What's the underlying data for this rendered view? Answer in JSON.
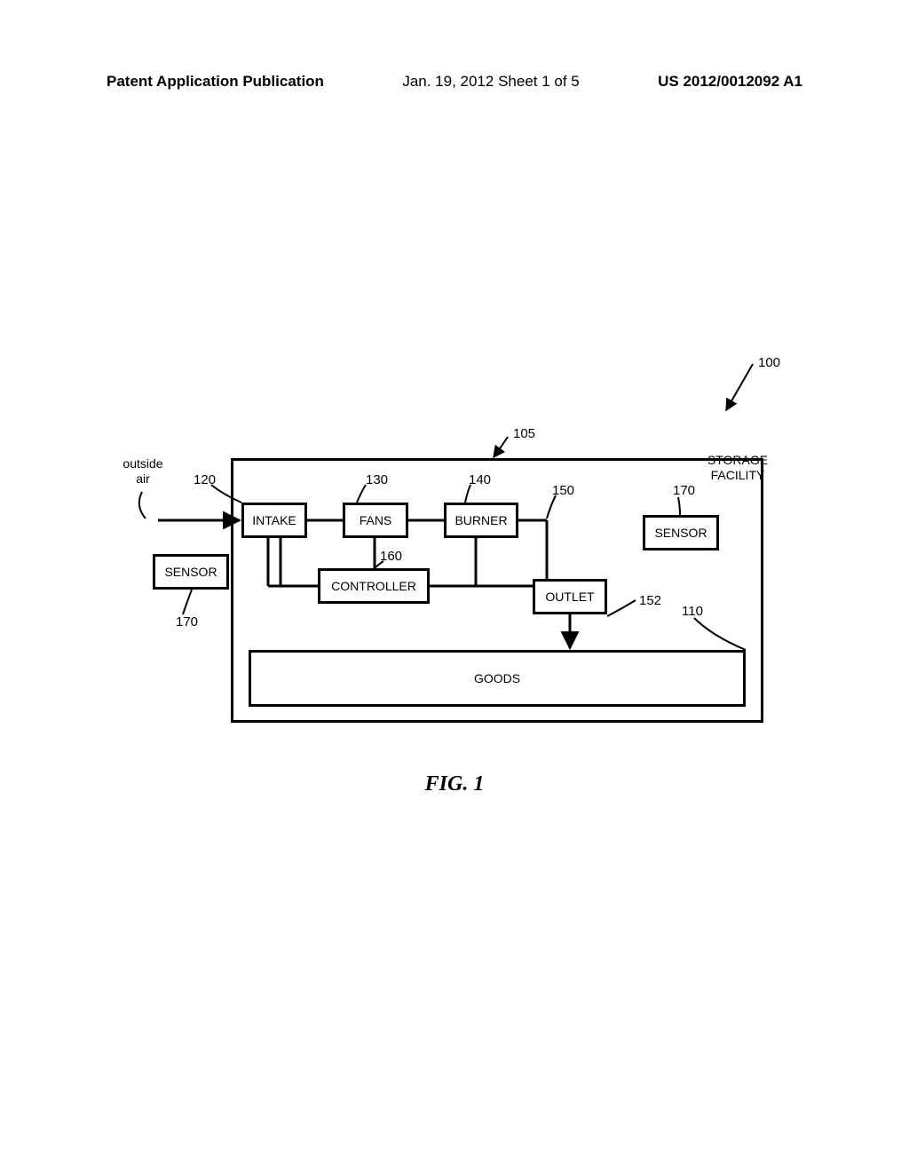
{
  "header": {
    "left": "Patent Application Publication",
    "center": "Jan. 19, 2012  Sheet 1 of 5",
    "right": "US 2012/0012092 A1"
  },
  "labels": {
    "outside_air": "outside\nair",
    "storage_facility": "STORAGE\nFACILITY"
  },
  "blocks": {
    "intake": "INTAKE",
    "fans": "FANS",
    "burner": "BURNER",
    "sensor_left": "SENSOR",
    "sensor_right": "SENSOR",
    "controller": "CONTROLLER",
    "outlet": "OUTLET",
    "goods": "GOODS"
  },
  "refs": {
    "r100": "100",
    "r105": "105",
    "r120": "120",
    "r130": "130",
    "r140": "140",
    "r150": "150",
    "r160": "160",
    "r170_left": "170",
    "r170_right": "170",
    "r152": "152",
    "r110": "110"
  },
  "caption": "FIG. 1"
}
